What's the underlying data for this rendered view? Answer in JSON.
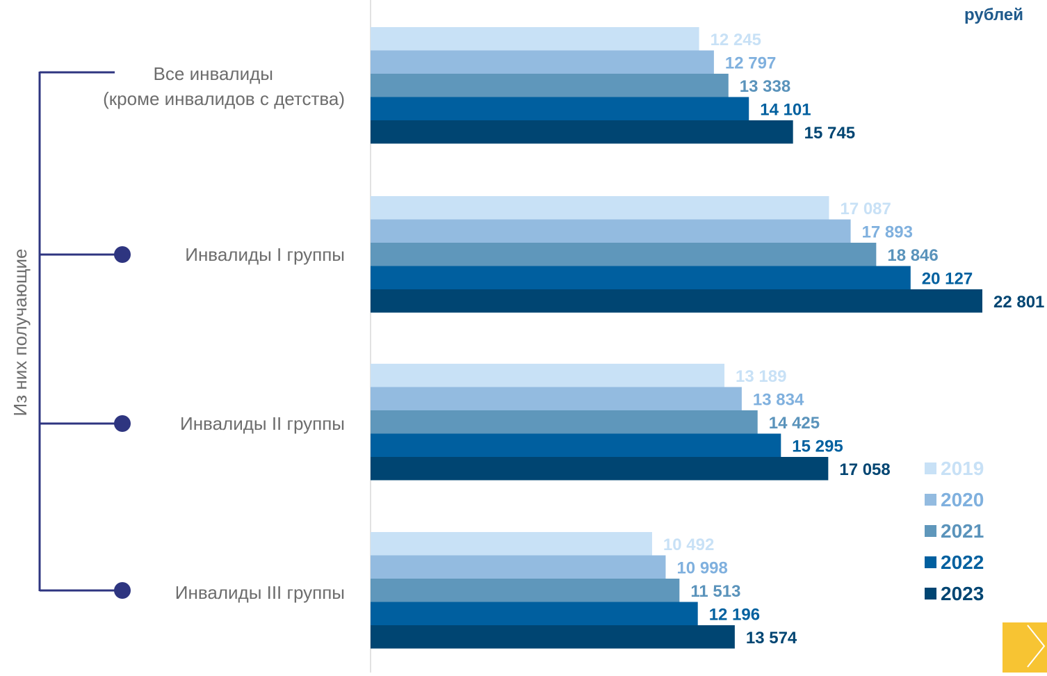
{
  "chart_data": {
    "type": "bar",
    "orientation": "horizontal",
    "unit_label": "рублей",
    "side_label": "Из них получающие",
    "categories": [
      "Все инвалиды\n(кроме инвалидов с детства)",
      "Инвалиды I группы",
      "Инвалиды II группы",
      "Инвалиды III группы"
    ],
    "series": [
      {
        "name": "2019",
        "color": "#c8e1f6",
        "label_color": "#c8e1f6",
        "values": [
          12245,
          17087,
          13189,
          10492
        ]
      },
      {
        "name": "2020",
        "color": "#93bbe0",
        "label_color": "#7fb0de",
        "values": [
          12797,
          17893,
          13834,
          10998
        ]
      },
      {
        "name": "2021",
        "color": "#5f97bb",
        "label_color": "#5a93bb",
        "values": [
          13338,
          18846,
          14425,
          11513
        ]
      },
      {
        "name": "2022",
        "color": "#005f9f",
        "label_color": "#00609f",
        "values": [
          14101,
          20127,
          15295,
          12196
        ]
      },
      {
        "name": "2023",
        "color": "#004572",
        "label_color": "#004572",
        "values": [
          15745,
          22801,
          17058,
          13574
        ]
      }
    ],
    "value_labels": [
      [
        "12 245",
        "17 087",
        "13 189",
        "10 492"
      ],
      [
        "12 797",
        "17 893",
        "13 834",
        "10 998"
      ],
      [
        "13 338",
        "18 846",
        "14 425",
        "11 513"
      ],
      [
        "14 101",
        "20 127",
        "15 295",
        "12 196"
      ],
      [
        "15 745",
        "22 801",
        "17 058",
        "13 574"
      ]
    ],
    "xlim": [
      0,
      22801
    ],
    "grid": false,
    "legend_position": "bottom-right",
    "bracket_color": "#2e3580",
    "category_label_color": "#6d6d6d"
  }
}
